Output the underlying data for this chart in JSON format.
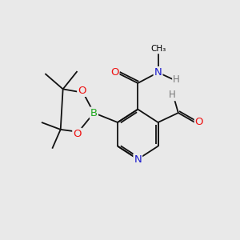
{
  "background_color": "#e9e9e9",
  "atom_colors": {
    "C": "#000000",
    "N": "#1a1acd",
    "O": "#ee1111",
    "B": "#22aa22",
    "H": "#777777"
  },
  "bond_color": "#111111",
  "bond_width": 1.3
}
